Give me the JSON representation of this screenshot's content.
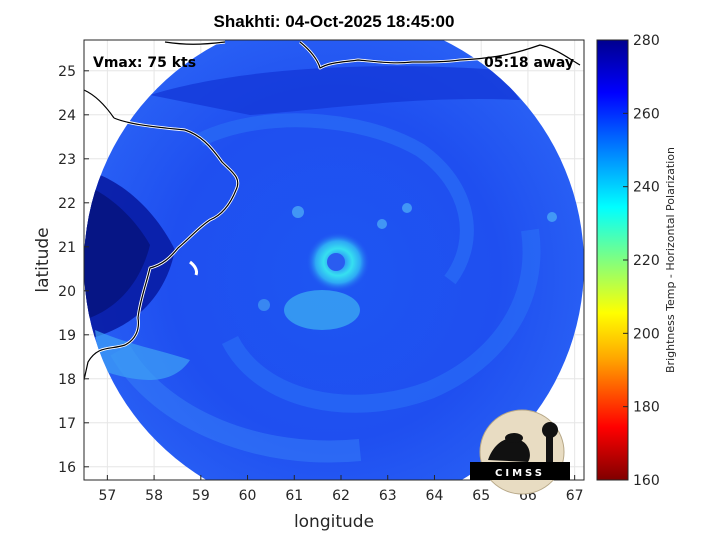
{
  "title": "Shakhti: 04-Oct-2025 18:45:00",
  "annotations": {
    "vmax": "Vmax: 75 kts",
    "away": "05:18 away"
  },
  "axes": {
    "xlabel": "longitude",
    "ylabel": "latitude",
    "xlim": [
      56.5,
      67.2
    ],
    "ylim": [
      15.7,
      25.7
    ],
    "xticks": [
      "57",
      "58",
      "59",
      "60",
      "61",
      "62",
      "63",
      "64",
      "65",
      "66",
      "67"
    ],
    "yticks": [
      "16",
      "17",
      "18",
      "19",
      "20",
      "21",
      "22",
      "23",
      "24",
      "25"
    ]
  },
  "colorbar": {
    "label": "Brightness Temp - Horizontal Polarization",
    "range": [
      160,
      280
    ],
    "ticks": [
      "160",
      "180",
      "200",
      "220",
      "240",
      "260",
      "280"
    ]
  },
  "logo": {
    "text": "CIMSS"
  }
}
